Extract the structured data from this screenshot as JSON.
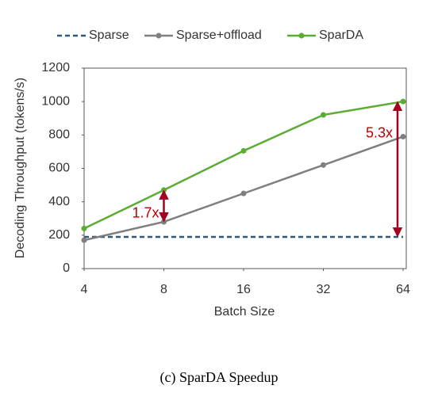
{
  "chart_data": {
    "type": "line",
    "x": [
      4,
      8,
      16,
      32,
      64
    ],
    "xscale": "log",
    "xlim": [
      4,
      64
    ],
    "xticks": [
      4,
      8,
      16,
      32,
      64
    ],
    "ylim": [
      0,
      1200
    ],
    "yticks": [
      0,
      200,
      400,
      600,
      800,
      1000,
      1200
    ],
    "ylabel": "Decoding Throughput (tokens/s)",
    "xlabel": "Batch Size",
    "series": [
      {
        "name": "Sparse",
        "color": "#2e5b7c",
        "dashed": true,
        "markers": false,
        "values": [
          190,
          190,
          190,
          190,
          190
        ]
      },
      {
        "name": "Sparse+offload",
        "color": "#7f7f7f",
        "dashed": false,
        "markers": true,
        "values": [
          170,
          280,
          450,
          620,
          790
        ]
      },
      {
        "name": "SparDA",
        "color": "#5aad32",
        "dashed": false,
        "markers": true,
        "values": [
          240,
          470,
          705,
          920,
          1000
        ]
      }
    ],
    "annotations": [
      {
        "text": "1.7x",
        "x": 8,
        "y": [
          280,
          470
        ],
        "color": "#c00000"
      },
      {
        "text": "5.3x",
        "x": 64,
        "y": [
          190,
          1000
        ],
        "color": "#c00000"
      }
    ],
    "legend": "top",
    "caption": "(c) SparDA Speedup"
  }
}
